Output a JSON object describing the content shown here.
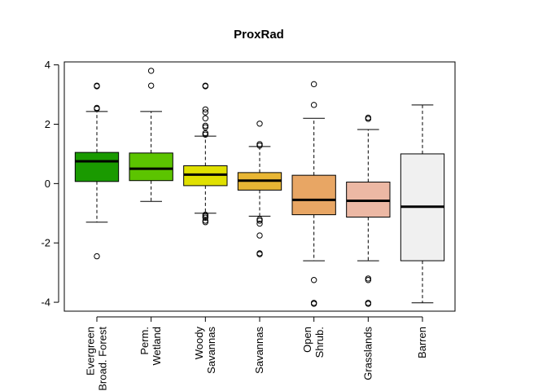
{
  "chart_data": {
    "type": "boxplot",
    "title": "ProxRad",
    "xlabel": "",
    "ylabel": "",
    "ylim": [
      -4.3,
      4.1
    ],
    "yticks": [
      -4,
      -2,
      0,
      2,
      4
    ],
    "yticks_labels": [
      "-4",
      "-2",
      "0",
      "2",
      "4"
    ],
    "grid": false,
    "legend": "none",
    "categories": [
      {
        "label_lines": [
          "Evergreen",
          "Broad. Forest"
        ],
        "color": "#1a9a00",
        "q1": 0.07,
        "median": 0.75,
        "q3": 1.05,
        "whisker_low": -1.3,
        "whisker_high": 2.43,
        "outliers": [
          3.3,
          3.28,
          2.55,
          2.52,
          -2.45
        ]
      },
      {
        "label_lines": [
          "Perm.",
          "Wetland"
        ],
        "color": "#5cc400",
        "q1": 0.1,
        "median": 0.5,
        "q3": 1.03,
        "whisker_low": -0.6,
        "whisker_high": 2.43,
        "outliers": [
          3.8,
          3.3
        ]
      },
      {
        "label_lines": [
          "Woody",
          "Savannas"
        ],
        "color": "#e0e000",
        "q1": -0.07,
        "median": 0.3,
        "q3": 0.6,
        "whisker_low": -1.0,
        "whisker_high": 1.6,
        "outliers": [
          3.3,
          3.28,
          2.5,
          2.4,
          2.2,
          1.95,
          1.9,
          1.7,
          1.65,
          -1.05,
          -1.1,
          -1.15,
          -1.25,
          -1.3
        ]
      },
      {
        "label_lines": [
          "Savannas"
        ],
        "color": "#e8b634",
        "q1": -0.22,
        "median": 0.1,
        "q3": 0.37,
        "whisker_low": -1.1,
        "whisker_high": 1.25,
        "outliers": [
          2.02,
          1.33,
          1.28,
          -1.2,
          -1.25,
          -1.35,
          -1.75,
          -2.35,
          -2.38
        ]
      },
      {
        "label_lines": [
          "Open",
          "Shrub."
        ],
        "color": "#e8a664",
        "q1": -1.05,
        "median": -0.55,
        "q3": 0.28,
        "whisker_low": -2.6,
        "whisker_high": 2.2,
        "outliers": [
          3.35,
          2.65,
          -3.25,
          -4.02,
          -4.05
        ]
      },
      {
        "label_lines": [
          "Grasslands"
        ],
        "color": "#ecb8a4",
        "q1": -1.13,
        "median": -0.58,
        "q3": 0.05,
        "whisker_low": -2.6,
        "whisker_high": 1.82,
        "outliers": [
          2.22,
          2.18,
          -3.2,
          -3.25,
          -4.02,
          -4.05
        ]
      },
      {
        "label_lines": [
          "Barren"
        ],
        "color": "#f0f0f0",
        "q1": -2.6,
        "median": -0.78,
        "q3": 1.0,
        "whisker_low": -4.02,
        "whisker_high": 2.65,
        "outliers": []
      }
    ]
  }
}
